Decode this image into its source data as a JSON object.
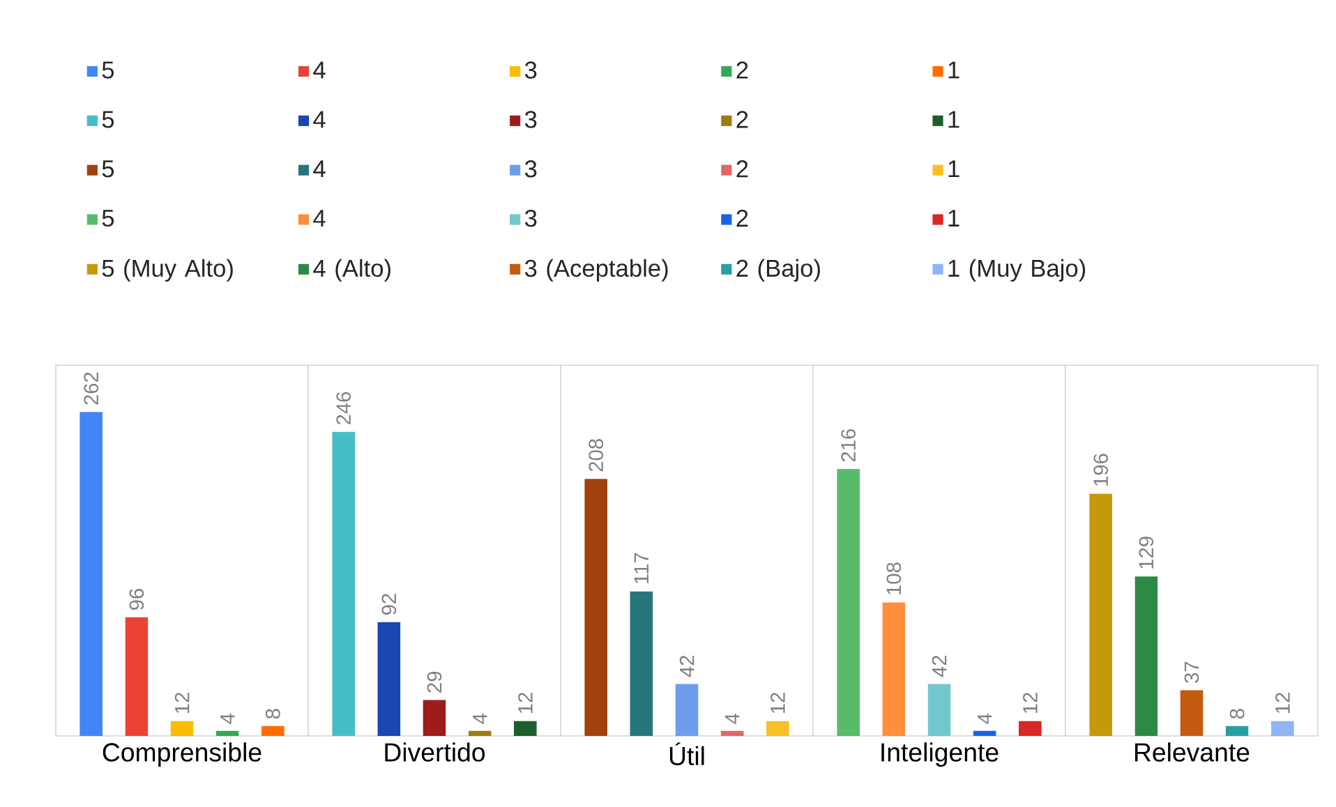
{
  "chart_data": {
    "type": "bar",
    "categories": [
      "Comprensible",
      "Divertido",
      "Útil",
      "Inteligente",
      "Relevante"
    ],
    "series": [
      {
        "name": "5",
        "color": "#4285f4",
        "values": [
          262,
          null,
          null,
          null,
          null
        ]
      },
      {
        "name": "4",
        "color": "#ea4335",
        "values": [
          96,
          null,
          null,
          null,
          null
        ]
      },
      {
        "name": "3",
        "color": "#fbbc04",
        "values": [
          12,
          null,
          null,
          null,
          null
        ]
      },
      {
        "name": "2",
        "color": "#34a853",
        "values": [
          4,
          null,
          null,
          null,
          null
        ]
      },
      {
        "name": "1",
        "color": "#ff6d01",
        "values": [
          8,
          null,
          null,
          null,
          null
        ]
      },
      {
        "name": "5",
        "color": "#46bdc6",
        "values": [
          null,
          246,
          null,
          null,
          null
        ]
      },
      {
        "name": "4",
        "color": "#1847b0",
        "values": [
          null,
          92,
          null,
          null,
          null
        ]
      },
      {
        "name": "3",
        "color": "#9e1c1c",
        "values": [
          null,
          29,
          null,
          null,
          null
        ]
      },
      {
        "name": "2",
        "color": "#9c7c0e",
        "values": [
          null,
          4,
          null,
          null,
          null
        ]
      },
      {
        "name": "1",
        "color": "#1e5e2e",
        "values": [
          null,
          12,
          null,
          null,
          null
        ]
      },
      {
        "name": "5",
        "color": "#a0410e",
        "values": [
          null,
          null,
          208,
          null,
          null
        ]
      },
      {
        "name": "4",
        "color": "#24767a",
        "values": [
          null,
          null,
          117,
          null,
          null
        ]
      },
      {
        "name": "3",
        "color": "#6d9eeb",
        "values": [
          null,
          null,
          42,
          null,
          null
        ]
      },
      {
        "name": "2",
        "color": "#e06666",
        "values": [
          null,
          null,
          4,
          null,
          null
        ]
      },
      {
        "name": "1",
        "color": "#f6c026",
        "values": [
          null,
          null,
          12,
          null,
          null
        ]
      },
      {
        "name": "5",
        "color": "#57bb6a",
        "values": [
          null,
          null,
          null,
          216,
          null
        ]
      },
      {
        "name": "4",
        "color": "#ff8f3c",
        "values": [
          null,
          null,
          null,
          108,
          null
        ]
      },
      {
        "name": "3",
        "color": "#71c8cc",
        "values": [
          null,
          null,
          null,
          42,
          null
        ]
      },
      {
        "name": "2",
        "color": "#1565e8",
        "values": [
          null,
          null,
          null,
          4,
          null
        ]
      },
      {
        "name": "1",
        "color": "#d92626",
        "values": [
          null,
          null,
          null,
          12,
          null
        ]
      },
      {
        "name": "5 (Muy Alto)",
        "color": "#c6980b",
        "values": [
          null,
          null,
          null,
          null,
          196
        ]
      },
      {
        "name": "4 (Alto)",
        "color": "#2d8a45",
        "values": [
          null,
          null,
          null,
          null,
          129
        ]
      },
      {
        "name": "3 (Aceptable)",
        "color": "#c55a11",
        "values": [
          null,
          null,
          null,
          null,
          37
        ]
      },
      {
        "name": "2 (Bajo)",
        "color": "#2a9ea5",
        "values": [
          null,
          null,
          null,
          null,
          8
        ]
      },
      {
        "name": "1 (Muy Bajo)",
        "color": "#8fb5f5",
        "values": [
          null,
          null,
          null,
          null,
          12
        ]
      }
    ],
    "ylim": [
      0,
      300
    ],
    "tick_labels": "x",
    "data_labels": true,
    "grid": "x",
    "legend": "top"
  }
}
